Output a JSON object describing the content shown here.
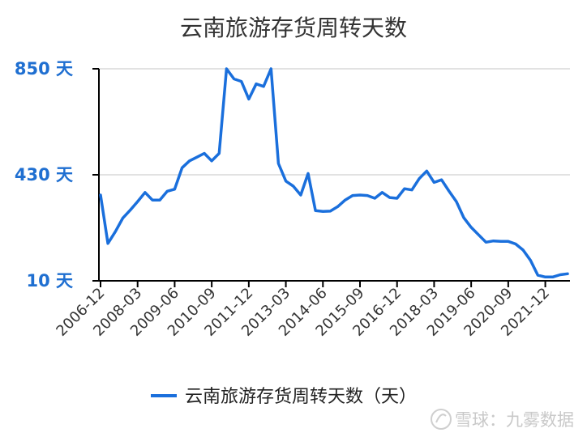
{
  "chart_data": {
    "type": "line",
    "title": "云南旅游存货周转天数",
    "xlabel": "",
    "ylabel": "",
    "ylim": [
      10,
      850
    ],
    "yticks": [
      10,
      430,
      850
    ],
    "ytick_labels": [
      "10 天",
      "430 天",
      "850 天"
    ],
    "x_tick_labels": [
      "2006-12",
      "2008-03",
      "2009-06",
      "2010-09",
      "2011-12",
      "2013-03",
      "2014-06",
      "2015-09",
      "2016-12",
      "2018-03",
      "2019-06",
      "2020-09",
      "2021-12"
    ],
    "grid": true,
    "legend_position": "bottom",
    "series": [
      {
        "name": "云南旅游存货周转天数（天）",
        "color": "#1a6fdc",
        "values": [
          350,
          158,
          205,
          258,
          290,
          324,
          360,
          330,
          330,
          365,
          373,
          458,
          485,
          500,
          515,
          485,
          515,
          850,
          810,
          800,
          730,
          790,
          780,
          850,
          475,
          405,
          385,
          350,
          435,
          288,
          285,
          286,
          304,
          330,
          348,
          350,
          348,
          337,
          360,
          340,
          337,
          375,
          370,
          415,
          445,
          400,
          410,
          366,
          324,
          260,
          222,
          192,
          163,
          168,
          166,
          166,
          156,
          132,
          91,
          32,
          25,
          25,
          34,
          38
        ]
      }
    ],
    "x_index_range": [
      0,
      63
    ]
  },
  "watermark": {
    "text": "雪球：九雾数据"
  }
}
